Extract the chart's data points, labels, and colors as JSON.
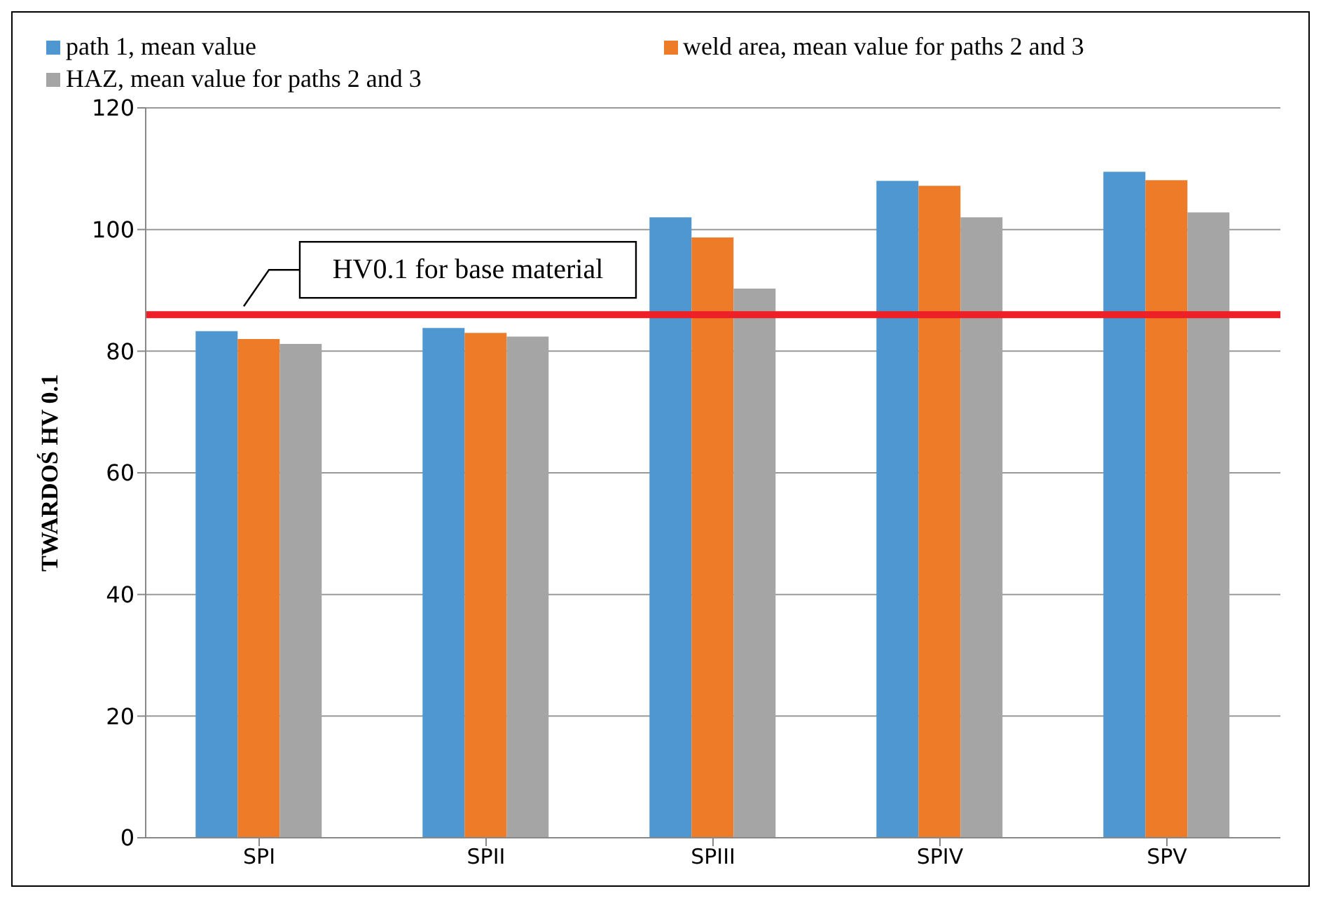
{
  "chart_data": {
    "type": "bar",
    "ylabel": "TWARDOŚ HV 0.1",
    "categories": [
      "SPI",
      "SPII",
      "SPIII",
      "SPIV",
      "SPV"
    ],
    "series": [
      {
        "name": "path 1, mean value",
        "color": "#4f97d0",
        "values": [
          83.3,
          83.8,
          102,
          108,
          109.5
        ]
      },
      {
        "name": "weld area, mean value for paths 2 and 3",
        "color": "#ee7b27",
        "values": [
          82,
          83,
          98.7,
          107.2,
          108.1
        ]
      },
      {
        "name": "HAZ, mean value for paths 2 and 3",
        "color": "#a5a5a5",
        "values": [
          81.2,
          82.4,
          90.3,
          102,
          102.8
        ]
      }
    ],
    "ylim": [
      0,
      120
    ],
    "yticks": [
      0,
      20,
      40,
      60,
      80,
      100,
      120
    ],
    "grid": "y",
    "legend": "top",
    "ref_lines": [
      {
        "axis": "y",
        "value": 86,
        "label": "HV0.1 for base material",
        "color": "#ee2027"
      }
    ]
  }
}
